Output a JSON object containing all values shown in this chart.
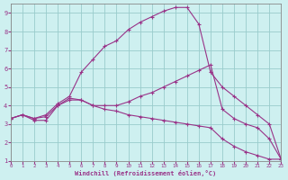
{
  "xlabel": "Windchill (Refroidissement éolien,°C)",
  "bg_color": "#cef0f0",
  "grid_color": "#99cccc",
  "line_color": "#993388",
  "xlim": [
    0,
    23
  ],
  "ylim": [
    1,
    9.5
  ],
  "yticks": [
    1,
    2,
    3,
    4,
    5,
    6,
    7,
    8,
    9
  ],
  "xticks": [
    0,
    1,
    2,
    3,
    4,
    5,
    6,
    7,
    8,
    9,
    10,
    11,
    12,
    13,
    14,
    15,
    16,
    17,
    18,
    19,
    20,
    21,
    22,
    23
  ],
  "line1_x": [
    0,
    1,
    2,
    3,
    4,
    5,
    6,
    7,
    8,
    9,
    10,
    11,
    12,
    13,
    14,
    15,
    16,
    17,
    18,
    19,
    20,
    21,
    22,
    23
  ],
  "line1_y": [
    3.3,
    3.5,
    3.3,
    3.5,
    4.1,
    4.5,
    5.8,
    6.5,
    7.2,
    7.5,
    8.1,
    8.5,
    8.8,
    9.1,
    9.3,
    9.3,
    8.4,
    5.8,
    5.0,
    4.5,
    4.0,
    3.5,
    3.0,
    1.1
  ],
  "line2_x": [
    0,
    1,
    2,
    3,
    4,
    5,
    6,
    7,
    8,
    9,
    10,
    11,
    12,
    13,
    14,
    15,
    16,
    17,
    18,
    19,
    20,
    21,
    22,
    23
  ],
  "line2_y": [
    3.3,
    3.5,
    3.3,
    3.4,
    4.0,
    4.3,
    4.3,
    4.0,
    4.0,
    4.0,
    4.2,
    4.5,
    4.7,
    5.0,
    5.3,
    5.6,
    5.9,
    6.2,
    3.8,
    3.3,
    3.0,
    2.8,
    2.2,
    1.1
  ],
  "line3_x": [
    0,
    1,
    2,
    3,
    4,
    5,
    6,
    7,
    8,
    9,
    10,
    11,
    12,
    13,
    14,
    15,
    16,
    17,
    18,
    19,
    20,
    21,
    22,
    23
  ],
  "line3_y": [
    3.3,
    3.5,
    3.2,
    3.2,
    4.0,
    4.4,
    4.3,
    4.0,
    3.8,
    3.7,
    3.5,
    3.4,
    3.3,
    3.2,
    3.1,
    3.0,
    2.9,
    2.8,
    2.2,
    1.8,
    1.5,
    1.3,
    1.1,
    1.1
  ]
}
